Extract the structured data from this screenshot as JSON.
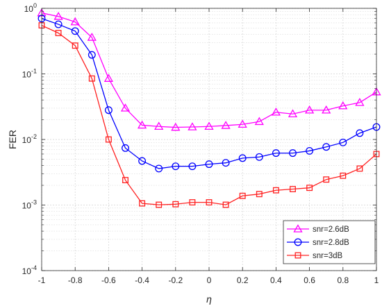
{
  "chart_data": {
    "type": "line",
    "xlabel": "η",
    "ylabel": "FER",
    "yscale": "log",
    "xlim": [
      -1,
      1
    ],
    "ylim": [
      0.0001,
      1
    ],
    "grid": "on (major and minor)",
    "legend_position": "bottom-right",
    "x": [
      -1,
      -0.9,
      -0.8,
      -0.7,
      -0.6,
      -0.5,
      -0.4,
      -0.3,
      -0.2,
      -0.1,
      0,
      0.1,
      0.2,
      0.3,
      0.4,
      0.5,
      0.6,
      0.7,
      0.8,
      0.9,
      1
    ],
    "xticks": [
      "-1",
      "-0.8",
      "-0.6",
      "-0.4",
      "-0.2",
      "0",
      "0.2",
      "0.4",
      "0.6",
      "0.8",
      "1"
    ],
    "xtick_values": [
      -1,
      -0.8,
      -0.6,
      -0.4,
      -0.2,
      0,
      0.2,
      0.4,
      0.6,
      0.8,
      1
    ],
    "yticks": [
      {
        "base": "10",
        "exp": "0",
        "value": 1
      },
      {
        "base": "10",
        "exp": "-1",
        "value": 0.1
      },
      {
        "base": "10",
        "exp": "-2",
        "value": 0.01
      },
      {
        "base": "10",
        "exp": "-3",
        "value": 0.001
      },
      {
        "base": "10",
        "exp": "-4",
        "value": 0.0001
      }
    ],
    "series": [
      {
        "name": "snr=2.6dB",
        "color": "#ff00ff",
        "marker": "triangle",
        "values": [
          0.85,
          0.75,
          0.62,
          0.36,
          0.085,
          0.03,
          0.0165,
          0.0158,
          0.0153,
          0.0155,
          0.0158,
          0.0163,
          0.017,
          0.0187,
          0.026,
          0.0245,
          0.028,
          0.028,
          0.0325,
          0.0365,
          0.053
        ]
      },
      {
        "name": "snr=2.8dB",
        "color": "#0000ff",
        "marker": "circle",
        "values": [
          0.7,
          0.57,
          0.45,
          0.195,
          0.028,
          0.0074,
          0.0047,
          0.0036,
          0.0039,
          0.0039,
          0.0042,
          0.0044,
          0.0052,
          0.0054,
          0.0062,
          0.0062,
          0.0067,
          0.0077,
          0.009,
          0.0125,
          0.0155
        ]
      },
      {
        "name": "snr=3dB",
        "color": "#ff2020",
        "marker": "square",
        "values": [
          0.55,
          0.42,
          0.27,
          0.085,
          0.01,
          0.0024,
          0.00106,
          0.00101,
          0.00103,
          0.0011,
          0.0011,
          0.00101,
          0.00138,
          0.00147,
          0.00168,
          0.00175,
          0.00183,
          0.00245,
          0.0028,
          0.0036,
          0.006
        ]
      }
    ]
  }
}
